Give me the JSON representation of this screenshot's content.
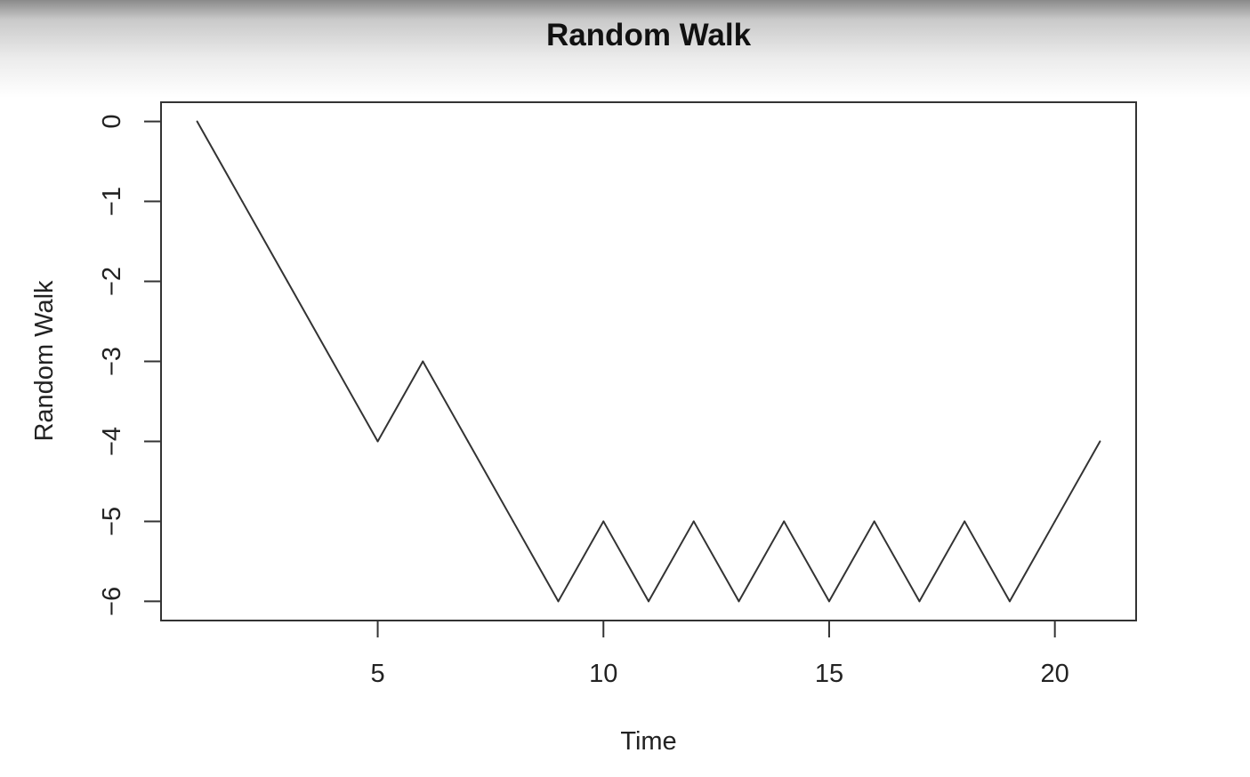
{
  "chart_data": {
    "type": "line",
    "title": "Random Walk",
    "xlabel": "Time",
    "ylabel": "Random Walk",
    "x": [
      1,
      2,
      3,
      4,
      5,
      6,
      7,
      8,
      9,
      10,
      11,
      12,
      13,
      14,
      15,
      16,
      17,
      18,
      19,
      20,
      21
    ],
    "series": [
      {
        "values": [
          0,
          -1,
          -2,
          -3,
          -4,
          -3,
          -4,
          -5,
          -6,
          -5,
          -6,
          -5,
          -6,
          -5,
          -6,
          -5,
          -6,
          -5,
          -6,
          -5,
          -4
        ]
      }
    ],
    "xlim": [
      0.2,
      21.8
    ],
    "ylim": [
      -6.24,
      0.24
    ],
    "xticks": [
      5,
      10,
      15,
      20
    ],
    "yticks": [
      0,
      -1,
      -2,
      -3,
      -4,
      -5,
      -6
    ],
    "xtick_labels": [
      "5",
      "10",
      "15",
      "20"
    ],
    "ytick_labels": [
      "0",
      "−1",
      "−2",
      "−3",
      "−4",
      "−5",
      "−6"
    ],
    "grid": false,
    "line_color": "#333333"
  }
}
